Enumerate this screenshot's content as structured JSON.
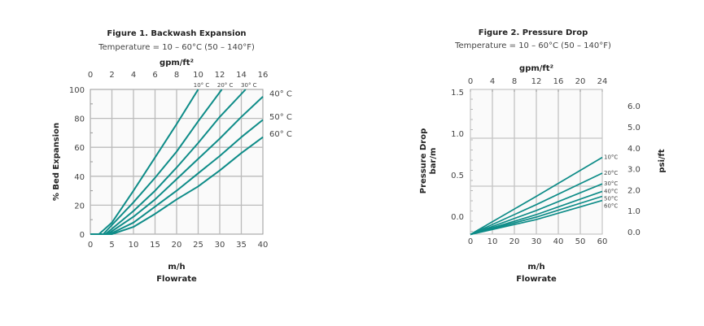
{
  "chart_data": [
    {
      "type": "line",
      "title": "Figure 1. Backwash Expansion",
      "subtitle": "Temperature = 10 – 60°C (50 – 140°F)",
      "xlabel": "m/h",
      "xlabel2": "Flowrate",
      "ylabel": "% Bed Expansion",
      "top_axis_label": "gpm/ft²",
      "xlim": [
        0,
        40
      ],
      "ylim": [
        0,
        100
      ],
      "top_lim": [
        0,
        16
      ],
      "xticks": [
        "0",
        "5",
        "10",
        "15",
        "20",
        "25",
        "30",
        "35",
        "40"
      ],
      "yticks": [
        "0",
        "20",
        "40",
        "60",
        "80",
        "100"
      ],
      "top_ticks": [
        "0",
        "2",
        "4",
        "6",
        "8",
        "10",
        "12",
        "14",
        "16"
      ],
      "grid": true,
      "color": "#0e8c88",
      "series": [
        {
          "name": "10° C",
          "points": [
            [
              2,
              0
            ],
            [
              5,
              8
            ],
            [
              10,
              30
            ],
            [
              15,
              53
            ],
            [
              20,
              76
            ],
            [
              25,
              100
            ]
          ]
        },
        {
          "name": "20° C",
          "points": [
            [
              3,
              0
            ],
            [
              10,
              22
            ],
            [
              15,
              39
            ],
            [
              20,
              57
            ],
            [
              25,
              78
            ],
            [
              30.5,
              100
            ]
          ]
        },
        {
          "name": "30° C",
          "points": [
            [
              3.5,
              0
            ],
            [
              10,
              16
            ],
            [
              15,
              30
            ],
            [
              20,
              46
            ],
            [
              25,
              63
            ],
            [
              30,
              81
            ],
            [
              36,
              100
            ]
          ]
        },
        {
          "name": "40° C",
          "points": [
            [
              4,
              0
            ],
            [
              10,
              12
            ],
            [
              15,
              24
            ],
            [
              20,
              38
            ],
            [
              25,
              52
            ],
            [
              30,
              66
            ],
            [
              35,
              81
            ],
            [
              40,
              95
            ]
          ]
        },
        {
          "name": "50° C",
          "points": [
            [
              4.5,
              0
            ],
            [
              10,
              8
            ],
            [
              15,
              19
            ],
            [
              20,
              30
            ],
            [
              25,
              42
            ],
            [
              30,
              54
            ],
            [
              35,
              67
            ],
            [
              40,
              79
            ]
          ]
        },
        {
          "name": "60° C",
          "points": [
            [
              5,
              0
            ],
            [
              10,
              5
            ],
            [
              15,
              14
            ],
            [
              20,
              24
            ],
            [
              25,
              33
            ],
            [
              30,
              44
            ],
            [
              35,
              56
            ],
            [
              40,
              67
            ]
          ]
        }
      ]
    },
    {
      "type": "line",
      "title": "Figure 2. Pressure Drop",
      "subtitle": "Temperature = 10 – 60°C (50 – 140°F)",
      "xlabel": "m/h",
      "xlabel2": "Flowrate",
      "ylabel": "Pressure Drop",
      "ylabel2": "bar/m",
      "y2label": "psi/ft",
      "top_axis_label": "gpm/ft²",
      "xlim": [
        0,
        60
      ],
      "ylim": [
        -0.22,
        1.5
      ],
      "top_lim": [
        0,
        24
      ],
      "xticks": [
        "0",
        "10",
        "20",
        "30",
        "40",
        "50",
        "60"
      ],
      "yticks": [
        "0.0",
        "0.5",
        "1.0",
        "1.5"
      ],
      "y2ticks": [
        "0.0",
        "1.0",
        "2.0",
        "3.0",
        "4.0",
        "5.0",
        "6.0"
      ],
      "top_ticks": [
        "0",
        "4",
        "8",
        "12",
        "16",
        "20",
        "24"
      ],
      "grid": true,
      "color": "#0e8c88",
      "series": [
        {
          "name": "10°C",
          "points": [
            [
              0,
              -0.22
            ],
            [
              30,
              0.24
            ],
            [
              60,
              0.71
            ]
          ]
        },
        {
          "name": "20°C",
          "points": [
            [
              0,
              -0.22
            ],
            [
              30,
              0.14
            ],
            [
              60,
              0.52
            ]
          ]
        },
        {
          "name": "30°C",
          "points": [
            [
              0,
              -0.22
            ],
            [
              30,
              0.07
            ],
            [
              60,
              0.39
            ]
          ]
        },
        {
          "name": "40°C",
          "points": [
            [
              0,
              -0.22
            ],
            [
              30,
              0.02
            ],
            [
              60,
              0.3
            ]
          ]
        },
        {
          "name": "50°C",
          "points": [
            [
              0,
              -0.22
            ],
            [
              30,
              -0.01
            ],
            [
              60,
              0.24
            ]
          ]
        },
        {
          "name": "60°C",
          "points": [
            [
              0,
              -0.22
            ],
            [
              30,
              -0.04
            ],
            [
              60,
              0.19
            ]
          ]
        }
      ]
    }
  ]
}
